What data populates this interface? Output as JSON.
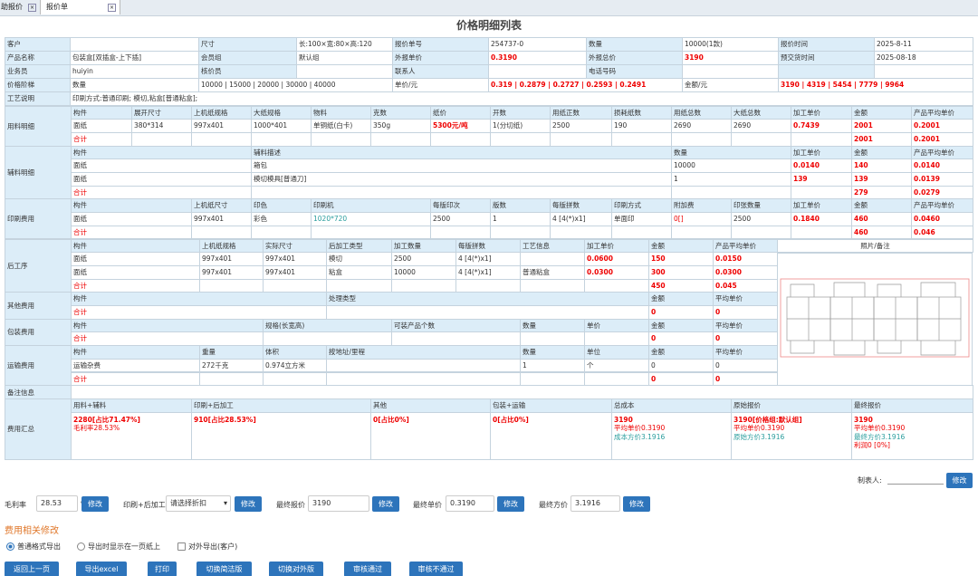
{
  "tabs": [
    "助报价",
    "报价单"
  ],
  "title": "价格明细列表",
  "info": [
    [
      "客户",
      null,
      "尺寸",
      "长:100×宽:80×高:120",
      "报价单号",
      "254737-0",
      "数量",
      "10000(1款)",
      "报价时间",
      "2025-8-11"
    ],
    [
      "产品名称",
      "包装盒[双插盒-上下插]",
      "会员组",
      "默认组",
      "外报单价",
      "0.3190",
      "外报总价",
      "3190",
      "预交货时间",
      "2025-08-18"
    ],
    [
      "业务员",
      "huiyin",
      "核价员",
      null,
      "联系人",
      null,
      "电话号码",
      null
    ],
    [
      "价格阶梯",
      "数量",
      "10000 | 15000 | 20000 | 30000 | 40000",
      "单价/元",
      "0.319 | 0.2879 | 0.2727 | 0.2593 | 0.2491",
      "金额/元",
      "3190 | 4319 | 5454 | 7779 | 9964"
    ],
    [
      "工艺说明",
      "印刷方式:普通印刷; 模切,粘盒[普通粘盒];"
    ]
  ],
  "sections": [
    {
      "label": "用料明细",
      "header": [
        "构件",
        "展开尺寸",
        "上机纸规格",
        "大纸规格",
        "物料",
        "克数",
        "纸价",
        "开数",
        "用纸正数",
        "损耗纸数",
        "用纸总数",
        "大纸总数",
        "加工单价",
        "金额",
        "产品平均单价"
      ],
      "rows": [
        [
          "面纸",
          "380*314",
          "997x401",
          "1000*401",
          "单铜纸(白卡)",
          "350g",
          "5300元/吨",
          "1(分切纸)",
          "2500",
          "190",
          "2690",
          "2690",
          "0.7439",
          "2001",
          "0.2001"
        ]
      ],
      "total": [
        "合计",
        null,
        null,
        null,
        null,
        null,
        null,
        null,
        null,
        null,
        null,
        null,
        null,
        "2001",
        "0.2001"
      ]
    },
    {
      "label": "辅料明细",
      "header": [
        "构件",
        "辅料描述",
        "数量",
        "加工单价",
        "金额",
        "产品平均单价"
      ],
      "rows": [
        [
          "面纸",
          "箱包",
          "10000",
          "0.0140",
          "140",
          "0.0140"
        ],
        [
          "面纸",
          "模切模具[普通刀]",
          "1",
          "139",
          "139",
          "0.0139"
        ]
      ],
      "total": [
        "合计",
        null,
        null,
        null,
        "279",
        "0.0279"
      ]
    },
    {
      "label": "印刷费用",
      "header": [
        "构件",
        "上机纸尺寸",
        "印色",
        "印刷机",
        "每版印次",
        "版数",
        "每版拼数",
        "印刷方式",
        "附加费",
        "印张数量",
        "加工单价",
        "金额",
        "产品平均单价"
      ],
      "rows": [
        [
          "面纸",
          "997x401",
          "彩色",
          "1020*720",
          "2500",
          "1",
          "4 [4(*)x1]",
          "单面印",
          "0[]",
          "2500",
          "0.1840",
          "460",
          "0.0460"
        ]
      ],
      "total": [
        "合计",
        null,
        null,
        null,
        null,
        null,
        null,
        null,
        null,
        null,
        null,
        "460",
        "0.046"
      ]
    },
    {
      "label": "后工序",
      "header": [
        "构件",
        "上机纸规格",
        "实际尺寸",
        "后加工类型",
        "加工数量",
        "每版拼数",
        "工艺信息",
        "加工单价",
        "金额",
        "产品平均单价"
      ],
      "rows": [
        [
          "面纸",
          "997x401",
          "997x401",
          "模切",
          "2500",
          "4 [4(*)x1]",
          null,
          "0.0600",
          "150",
          "0.0150"
        ],
        [
          "面纸",
          "997x401",
          "997x401",
          "粘盒",
          "10000",
          "4 [4(*)x1]",
          "普通粘盒",
          "0.0300",
          "300",
          "0.0300"
        ]
      ],
      "total": [
        "合计",
        null,
        null,
        null,
        null,
        null,
        null,
        null,
        "450",
        "0.045"
      ]
    },
    {
      "label": "其他费用",
      "header": [
        "构件",
        "处理类型",
        "金额",
        "平均单价"
      ],
      "rows": [],
      "total": [
        "合计",
        null,
        "0",
        "0"
      ]
    },
    {
      "label": "包装费用",
      "header": [
        "构件",
        "规格(长宽高)",
        "可装产品个数",
        "数量",
        "单价",
        "金额",
        "平均单价"
      ],
      "rows": [],
      "total": [
        "合计",
        null,
        null,
        null,
        null,
        "0",
        "0"
      ]
    },
    {
      "label": "运输费用",
      "header": [
        "构件",
        "重量",
        "体积",
        "按地址/里程",
        "数量",
        "单位",
        "金额",
        "平均单价"
      ],
      "rows": [
        [
          "运输杂费",
          "272千克",
          "0.974立方米",
          null,
          "1",
          "个",
          "0",
          "0"
        ]
      ],
      "total": [
        "合计",
        null,
        null,
        null,
        null,
        null,
        "0",
        "0"
      ]
    }
  ],
  "photo": "照片/备注",
  "remarks": "备注信息",
  "summary": {
    "label": "费用汇总",
    "header": [
      "用料+辅料",
      "印刷+后加工",
      "其他",
      "包装+运输",
      "总成本",
      "原始报价",
      "最终报价"
    ],
    "cells": [
      [
        "2280[占比71.47%]",
        "毛利率28.53%"
      ],
      [
        "910[占比28.53%]"
      ],
      [
        "0[占比0%]"
      ],
      [
        "0[占比0%]"
      ],
      [
        "3190",
        "平均单价0.3190",
        "成本方价3.1916"
      ],
      [
        "3190[价格组:默认组]",
        "平均单价0.3190",
        "原始方价3.1916"
      ],
      [
        "3190",
        "平均单价0.3190",
        "最终方价3.1916",
        "利润0 [0%]"
      ]
    ]
  },
  "form": {
    "maker": "制表人:",
    "button": "修改",
    "fields": [
      {
        "label": "毛利率",
        "value": "28.53",
        "unit": "%"
      },
      {
        "label": "印刷+后加工",
        "value": "请选择折扣"
      },
      {
        "label": "最终报价",
        "value": "3190"
      },
      {
        "label": "最终单价",
        "value": "0.3190"
      },
      {
        "label": "最终方价",
        "value": "3.1916"
      }
    ]
  },
  "heading": "费用相关修改",
  "options": [
    "普通格式导出",
    "导出时显示在一页纸上",
    "对外导出(客户)"
  ],
  "buttons": [
    "返回上一页",
    "导出excel",
    "打印",
    "切换简洁版",
    "切换对外版",
    "审核通过",
    "审核不通过"
  ]
}
